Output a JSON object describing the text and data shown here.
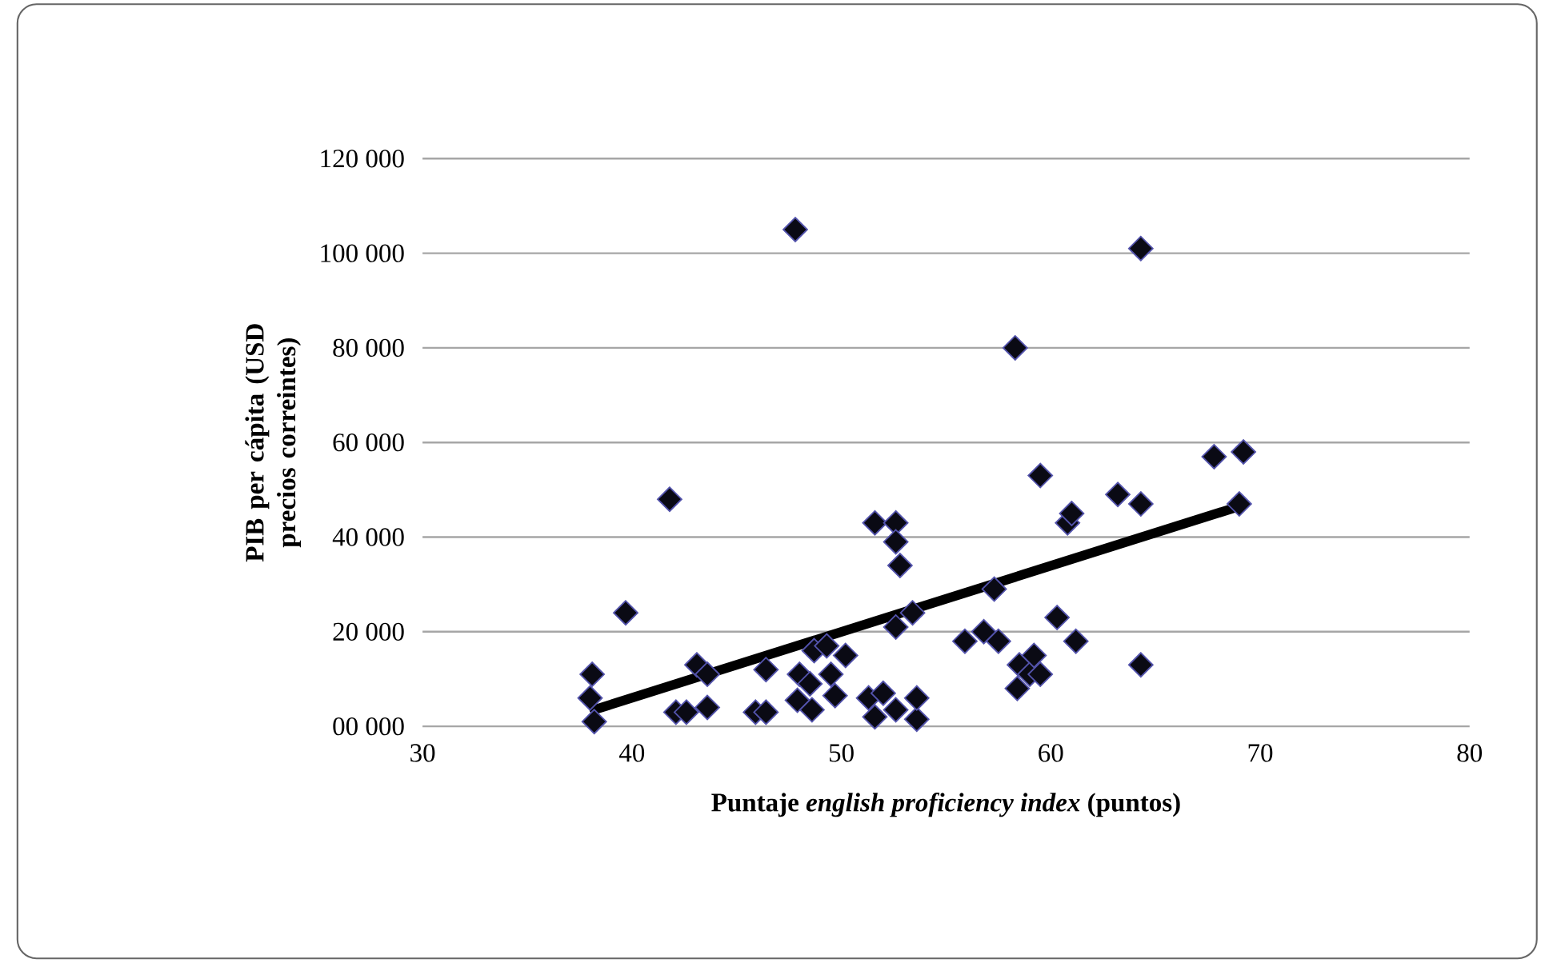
{
  "chart_data": {
    "type": "scatter",
    "xlabel": "Puntaje *english proficiency index* (puntos)",
    "ylabel": "PIB per cápita (USD precios correintes)",
    "xlim": [
      30,
      80
    ],
    "xticks": [
      30,
      40,
      50,
      60,
      70,
      80
    ],
    "ylim": [
      0,
      120000
    ],
    "yticks": [
      {
        "value": 0,
        "label": "00 000"
      },
      {
        "value": 20000,
        "label": "20 000"
      },
      {
        "value": 40000,
        "label": "40 000"
      },
      {
        "value": 60000,
        "label": "60 000"
      },
      {
        "value": 80000,
        "label": "80 000"
      },
      {
        "value": 100000,
        "label": "100 000"
      },
      {
        "value": 120000,
        "label": "120 000"
      }
    ],
    "grid": "y",
    "marker": "diamond",
    "series": [
      {
        "color": "#0a0a14",
        "x": [
          38.1,
          38.0,
          38.2,
          39.7,
          41.8,
          42.1,
          42.6,
          43.1,
          43.6,
          43.6,
          45.9,
          46.4,
          46.4,
          47.8,
          47.9,
          48.0,
          48.5,
          48.6,
          48.7,
          49.3,
          49.5,
          49.7,
          50.2,
          51.3,
          51.6,
          51.6,
          52.0,
          52.6,
          52.6,
          52.6,
          52.6,
          52.8,
          53.4,
          53.6,
          53.6,
          55.9,
          56.8,
          57.3,
          57.5,
          58.3,
          58.5,
          58.4,
          59.0,
          59.5,
          59.2,
          59.5,
          60.3,
          60.8,
          61.0,
          61.2,
          63.2,
          64.3,
          64.3,
          64.3,
          67.8,
          69.0,
          69.2
        ],
        "values": [
          11000,
          6000,
          1000,
          24000,
          48000,
          3000,
          3000,
          13000,
          11000,
          4000,
          3000,
          12000,
          3000,
          105000,
          5500,
          11000,
          9000,
          3500,
          16000,
          17000,
          11000,
          6500,
          15000,
          6000,
          43000,
          2000,
          7000,
          43000,
          39000,
          21000,
          3500,
          34000,
          24000,
          1500,
          6000,
          18000,
          20000,
          29000,
          18000,
          80000,
          13000,
          8000,
          11000,
          53000,
          15000,
          11000,
          23000,
          43000,
          45000,
          18000,
          49000,
          47000,
          101000,
          13000,
          57000,
          47000,
          58000
        ]
      },
      {
        "type": "line",
        "color": "#000000",
        "marker": "none",
        "line_style": "solid",
        "x": [
          38.2,
          69.0
        ],
        "values": [
          3500,
          46500
        ]
      }
    ]
  }
}
